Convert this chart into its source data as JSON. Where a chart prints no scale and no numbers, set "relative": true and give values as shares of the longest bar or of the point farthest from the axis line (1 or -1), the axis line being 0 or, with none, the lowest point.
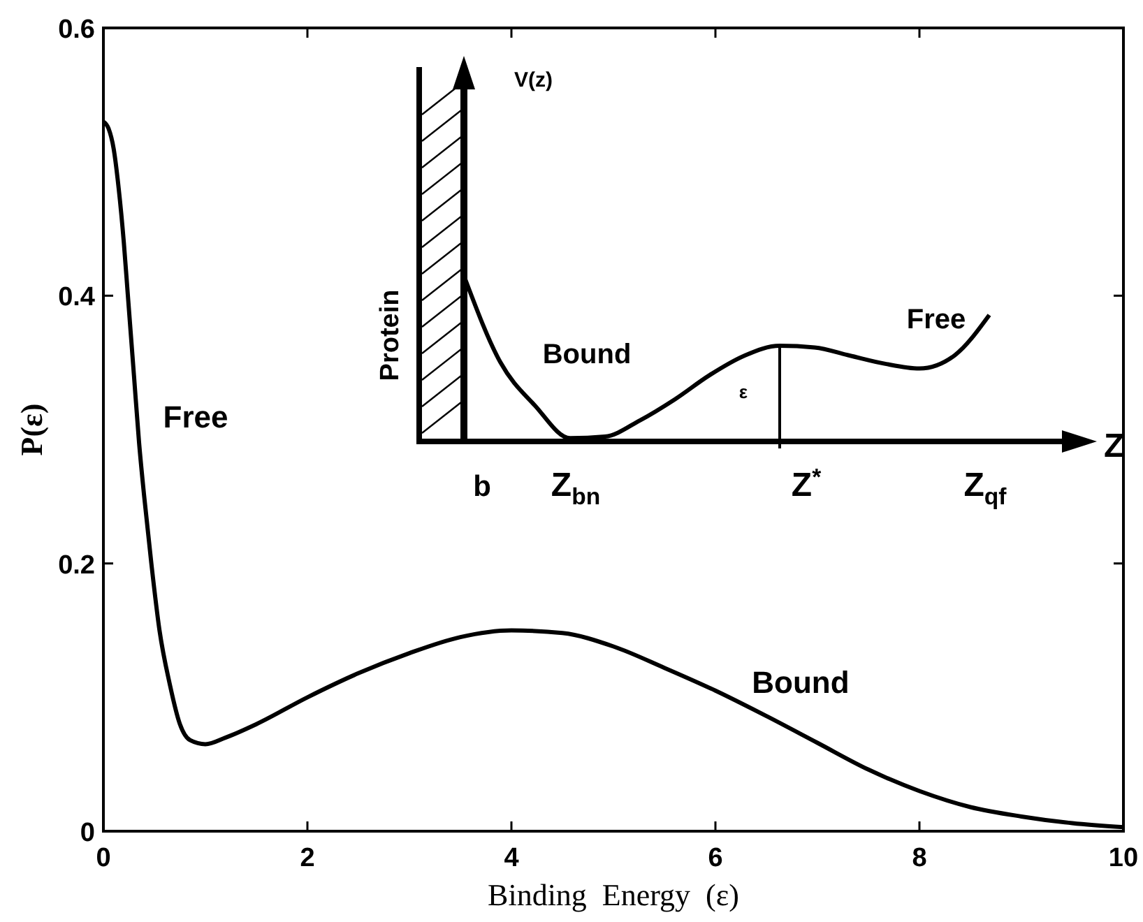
{
  "chart_data": [
    {
      "type": "line",
      "xlabel": "Binding  Energy  (ε)",
      "ylabel": "P(ε)",
      "x": [
        0,
        0.05,
        0.1,
        0.15,
        0.2,
        0.24,
        0.3,
        0.35,
        0.4,
        0.47,
        0.55,
        0.65,
        0.75,
        0.85,
        1.0,
        1.2,
        1.5,
        2,
        2.5,
        3,
        3.5,
        4,
        4.5,
        5,
        5.5,
        6,
        6.5,
        7,
        7.5,
        8,
        8.5,
        9,
        9.5,
        10
      ],
      "series": [
        {
          "color": "#000000",
          "values": [
            0.53,
            0.525,
            0.51,
            0.48,
            0.44,
            0.4,
            0.34,
            0.29,
            0.25,
            0.2,
            0.15,
            0.11,
            0.08,
            0.068,
            0.065,
            0.07,
            0.08,
            0.1,
            0.118,
            0.133,
            0.145,
            0.15,
            0.148,
            0.138,
            0.122,
            0.105,
            0.086,
            0.066,
            0.046,
            0.03,
            0.018,
            0.011,
            0.006,
            0.003
          ]
        }
      ],
      "xlim": [
        0,
        10
      ],
      "xticks": [
        0,
        2,
        4,
        6,
        8,
        10
      ],
      "ylim": [
        0,
        0.6
      ],
      "yticks": [
        0,
        0.2,
        0.4,
        0.6
      ],
      "annotations": [
        "Free",
        "Bound"
      ]
    },
    {
      "type": "line",
      "relative": true,
      "xlabel": "Z",
      "ylabel": "V(z)",
      "categories": [
        null,
        null,
        null,
        null,
        null,
        null,
        null,
        null,
        null,
        null,
        null,
        null,
        null,
        null,
        null,
        null
      ],
      "series": [
        {
          "color": "#000000",
          "values": [
            1.0,
            0.49,
            0.22,
            0.02,
            0.03,
            0.13,
            0.26,
            0.41,
            0.53,
            0.59,
            0.58,
            0.53,
            0.48,
            0.45,
            0.53,
            0.78
          ]
        }
      ],
      "annotations": [
        "Protein",
        "Bound",
        "Free",
        "ε",
        "b",
        "Z$_{bn}$",
        "Z$^{*}$",
        "Z$_{qf}$"
      ]
    }
  ]
}
